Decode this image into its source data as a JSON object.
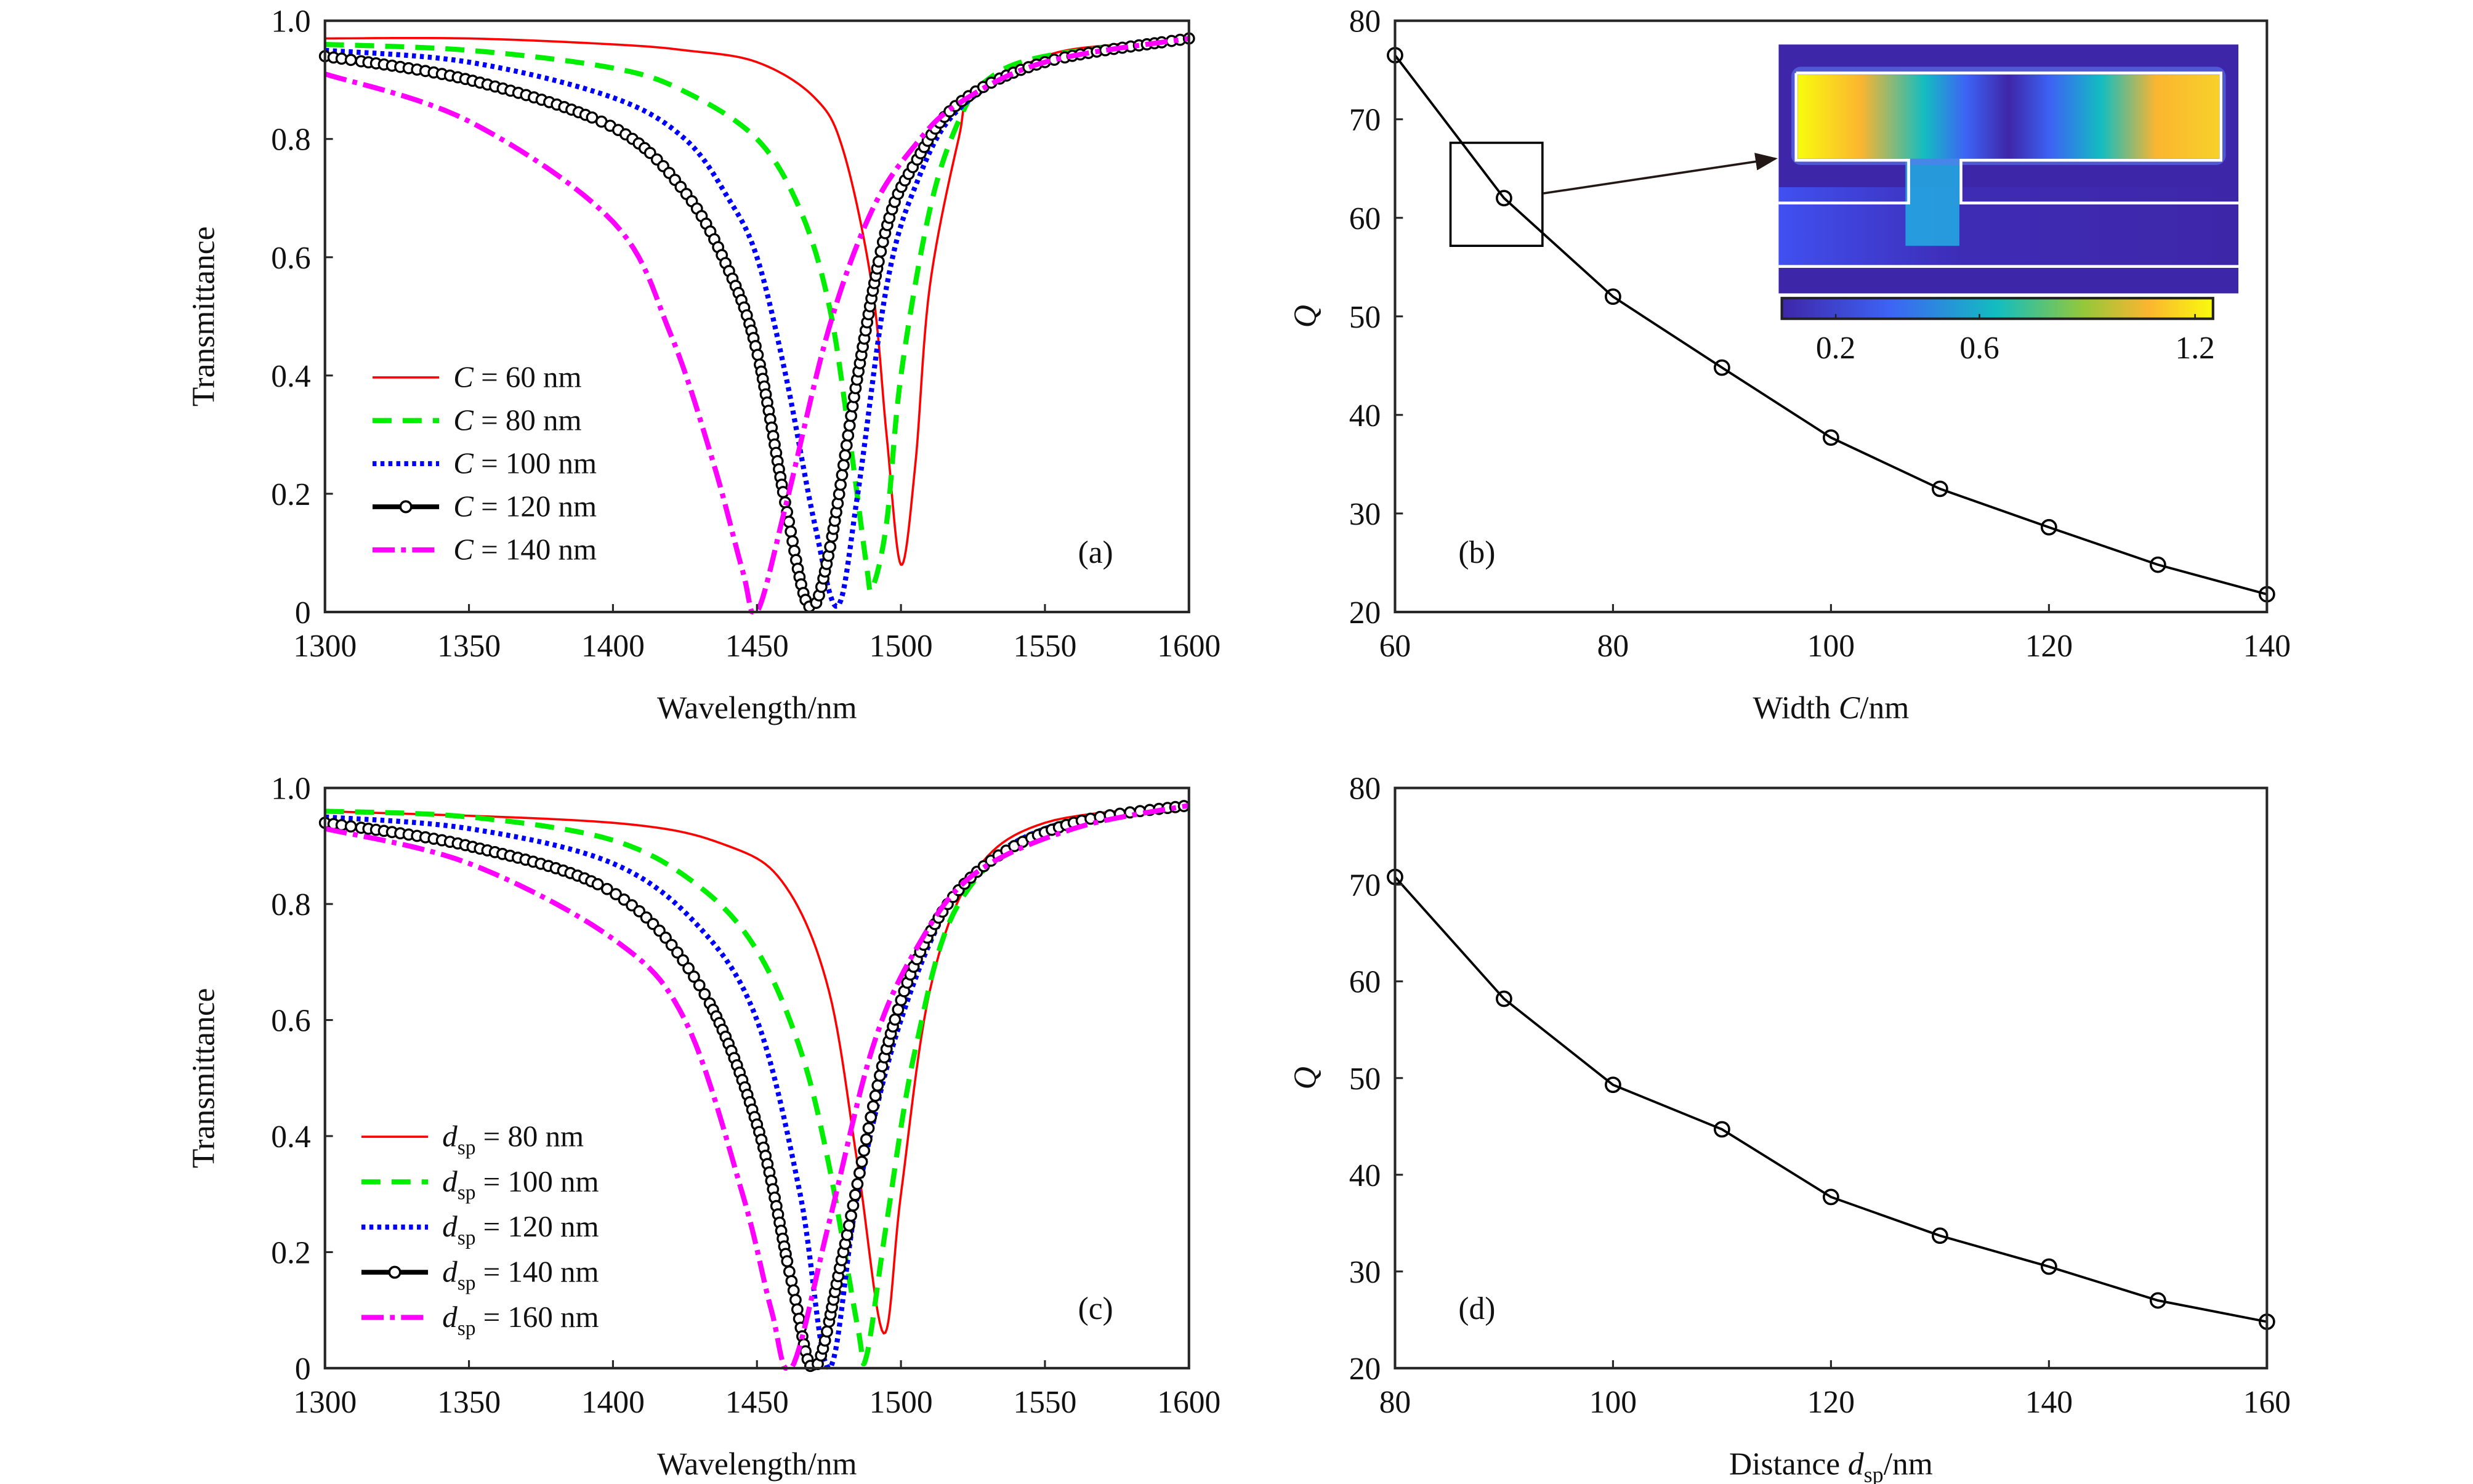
{
  "chart_data": [
    {
      "type": "line",
      "panel_label": "(a)",
      "xlabel": "Wavelength/nm",
      "ylabel": "Transmittance",
      "xlim": [
        1300,
        1600
      ],
      "ylim": [
        0,
        1
      ],
      "xticks": [
        1300,
        1350,
        1400,
        1450,
        1500,
        1550,
        1600
      ],
      "xtick_labels": [
        "1300",
        "1350",
        "1400",
        "1450",
        "1500",
        "1550",
        "1600"
      ],
      "yticks": [
        0,
        0.2,
        0.4,
        0.6,
        0.8,
        1.0
      ],
      "ytick_labels": [
        "0",
        "0.2",
        "0.4",
        "0.6",
        "0.8",
        "1.0"
      ],
      "legend_position": "bottom-left",
      "series": [
        {
          "var": "C",
          "sub": "",
          "rest": " = 60 nm",
          "color": "#ff0000",
          "style": "solid",
          "x": [
            1300,
            1350,
            1400,
            1425,
            1450,
            1470,
            1480,
            1490,
            1495,
            1500,
            1505,
            1510,
            1520,
            1525,
            1550,
            1575,
            1600
          ],
          "y": [
            0.97,
            0.97,
            0.96,
            0.95,
            0.93,
            0.87,
            0.78,
            0.55,
            0.3,
            0.08,
            0.25,
            0.55,
            0.8,
            0.87,
            0.94,
            0.96,
            0.97
          ]
        },
        {
          "var": "C",
          "sub": "",
          "rest": " = 80 nm",
          "color": "#00ee00",
          "style": "dash",
          "x": [
            1300,
            1350,
            1400,
            1425,
            1450,
            1465,
            1475,
            1482,
            1488,
            1490,
            1495,
            1500,
            1510,
            1520,
            1530,
            1550,
            1600
          ],
          "y": [
            0.96,
            0.95,
            0.92,
            0.88,
            0.8,
            0.68,
            0.52,
            0.3,
            0.08,
            0.04,
            0.15,
            0.4,
            0.68,
            0.83,
            0.9,
            0.94,
            0.97
          ]
        },
        {
          "var": "C",
          "sub": "",
          "rest": " = 100 nm",
          "color": "#0000ff",
          "style": "dot",
          "x": [
            1300,
            1350,
            1400,
            1425,
            1440,
            1450,
            1460,
            1470,
            1478,
            1485,
            1495,
            1505,
            1520,
            1550,
            1600
          ],
          "y": [
            0.95,
            0.93,
            0.87,
            0.8,
            0.7,
            0.6,
            0.4,
            0.15,
            0.01,
            0.2,
            0.55,
            0.72,
            0.85,
            0.93,
            0.97
          ]
        },
        {
          "var": "C",
          "sub": "",
          "rest": " = 120 nm",
          "color": "#000000",
          "style": "marker",
          "x": [
            1300,
            1350,
            1400,
            1425,
            1440,
            1450,
            1460,
            1468,
            1475,
            1485,
            1495,
            1505,
            1520,
            1550,
            1600
          ],
          "y": [
            0.94,
            0.9,
            0.82,
            0.71,
            0.58,
            0.44,
            0.18,
            0.01,
            0.1,
            0.4,
            0.65,
            0.76,
            0.86,
            0.93,
            0.97
          ]
        },
        {
          "var": "C",
          "sub": "",
          "rest": " = 140 nm",
          "color": "#ff00ff",
          "style": "dashdot",
          "x": [
            1300,
            1350,
            1400,
            1420,
            1435,
            1445,
            1450,
            1460,
            1475,
            1490,
            1505,
            1520,
            1550,
            1600
          ],
          "y": [
            0.91,
            0.83,
            0.66,
            0.47,
            0.25,
            0.07,
            0.0,
            0.18,
            0.48,
            0.68,
            0.79,
            0.86,
            0.93,
            0.97
          ]
        }
      ]
    },
    {
      "type": "line",
      "panel_label": "(b)",
      "xlabel_parts": [
        "Width ",
        "C",
        "/nm"
      ],
      "ylabel": "Q",
      "xlim": [
        60,
        140
      ],
      "ylim": [
        20,
        80
      ],
      "xticks": [
        60,
        80,
        100,
        120,
        140
      ],
      "xtick_labels": [
        "60",
        "80",
        "100",
        "120",
        "140"
      ],
      "yticks": [
        20,
        30,
        40,
        50,
        60,
        70,
        80
      ],
      "ytick_labels": [
        "20",
        "30",
        "40",
        "50",
        "60",
        "70",
        "80"
      ],
      "x": [
        60,
        70,
        80,
        90,
        100,
        110,
        120,
        130,
        140
      ],
      "y": [
        76.5,
        62.0,
        52.0,
        44.8,
        37.7,
        32.5,
        28.6,
        24.8,
        21.8
      ],
      "inset": {
        "colorbar_ticks": [
          0.2,
          0.6,
          1.2
        ],
        "colorbar_tick_labels": [
          "0.2",
          "0.6",
          "1.2"
        ],
        "colorbar_range": [
          0.05,
          1.25
        ]
      }
    },
    {
      "type": "line",
      "panel_label": "(c)",
      "xlabel": "Wavelength/nm",
      "ylabel": "Transmittance",
      "xlim": [
        1300,
        1600
      ],
      "ylim": [
        0,
        1
      ],
      "xticks": [
        1300,
        1350,
        1400,
        1450,
        1500,
        1550,
        1600
      ],
      "xtick_labels": [
        "1300",
        "1350",
        "1400",
        "1450",
        "1500",
        "1550",
        "1600"
      ],
      "yticks": [
        0,
        0.2,
        0.4,
        0.6,
        0.8,
        1.0
      ],
      "ytick_labels": [
        "0",
        "0.2",
        "0.4",
        "0.6",
        "0.8",
        "1.0"
      ],
      "legend_position": "bottom-left",
      "series": [
        {
          "var": "d",
          "sub": "sp",
          "rest": " = 80 nm",
          "color": "#ff0000",
          "style": "solid",
          "x": [
            1300,
            1400,
            1440,
            1460,
            1475,
            1485,
            1494,
            1500,
            1510,
            1525,
            1550,
            1600
          ],
          "y": [
            0.96,
            0.94,
            0.9,
            0.83,
            0.65,
            0.35,
            0.06,
            0.3,
            0.65,
            0.85,
            0.94,
            0.97
          ]
        },
        {
          "var": "d",
          "sub": "sp",
          "rest": " = 100 nm",
          "color": "#00ee00",
          "style": "dash",
          "x": [
            1300,
            1350,
            1400,
            1430,
            1450,
            1465,
            1475,
            1485,
            1488,
            1495,
            1505,
            1520,
            1550,
            1600
          ],
          "y": [
            0.96,
            0.95,
            0.91,
            0.83,
            0.72,
            0.55,
            0.35,
            0.07,
            0.02,
            0.25,
            0.55,
            0.8,
            0.93,
            0.97
          ]
        },
        {
          "var": "d",
          "sub": "sp",
          "rest": " = 120 nm",
          "color": "#0000ff",
          "style": "dot",
          "x": [
            1300,
            1350,
            1400,
            1430,
            1450,
            1465,
            1475,
            1485,
            1500,
            1520,
            1550,
            1600
          ],
          "y": [
            0.95,
            0.93,
            0.87,
            0.76,
            0.6,
            0.3,
            0.0,
            0.3,
            0.6,
            0.82,
            0.93,
            0.97
          ]
        },
        {
          "var": "d",
          "sub": "sp",
          "rest": " = 140 nm",
          "color": "#000000",
          "style": "marker",
          "x": [
            1300,
            1350,
            1400,
            1430,
            1450,
            1462,
            1470,
            1480,
            1495,
            1510,
            1530,
            1560,
            1600
          ],
          "y": [
            0.94,
            0.9,
            0.82,
            0.66,
            0.42,
            0.15,
            0.0,
            0.2,
            0.55,
            0.75,
            0.87,
            0.94,
            0.97
          ]
        },
        {
          "var": "d",
          "sub": "sp",
          "rest": " = 160 nm",
          "color": "#ff00ff",
          "style": "dashdot",
          "x": [
            1300,
            1350,
            1400,
            1425,
            1445,
            1455,
            1462,
            1475,
            1490,
            1505,
            1525,
            1560,
            1600
          ],
          "y": [
            0.93,
            0.87,
            0.74,
            0.6,
            0.3,
            0.1,
            0.0,
            0.25,
            0.55,
            0.72,
            0.85,
            0.93,
            0.97
          ]
        }
      ]
    },
    {
      "type": "line",
      "panel_label": "(d)",
      "xlabel_parts": [
        "Distance ",
        "d",
        "sp",
        "/nm"
      ],
      "ylabel": "Q",
      "xlim": [
        80,
        160
      ],
      "ylim": [
        20,
        80
      ],
      "xticks": [
        80,
        100,
        120,
        140,
        160
      ],
      "xtick_labels": [
        "80",
        "100",
        "120",
        "140",
        "160"
      ],
      "yticks": [
        20,
        30,
        40,
        50,
        60,
        70,
        80
      ],
      "ytick_labels": [
        "20",
        "30",
        "40",
        "50",
        "60",
        "70",
        "80"
      ],
      "x": [
        80,
        90,
        100,
        110,
        120,
        130,
        140,
        150,
        160
      ],
      "y": [
        70.8,
        58.2,
        49.3,
        44.7,
        37.7,
        33.7,
        30.5,
        27.0,
        24.8
      ]
    }
  ]
}
